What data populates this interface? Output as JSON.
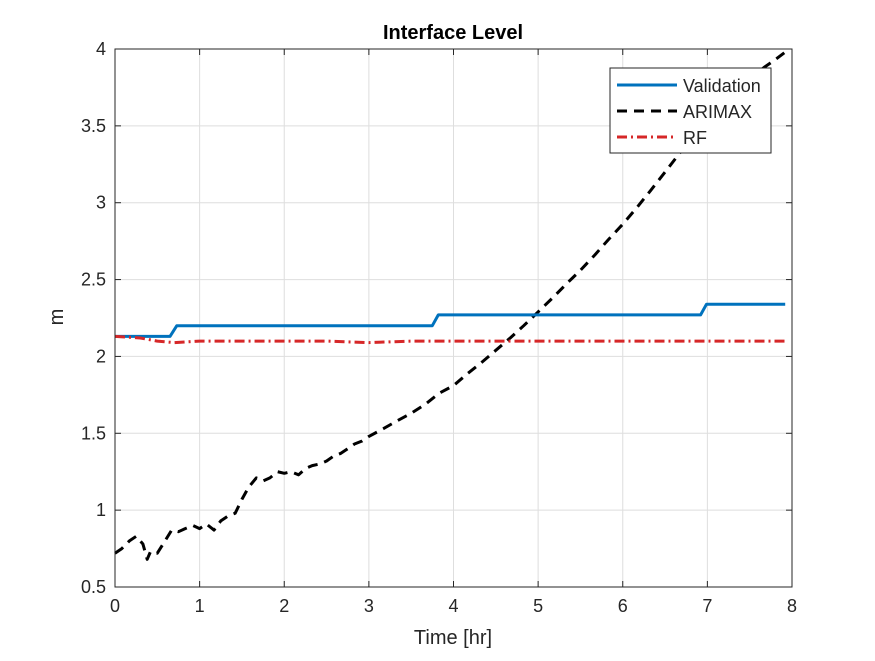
{
  "chart_data": {
    "type": "line",
    "title": "Interface Level",
    "xlabel": "Time [hr]",
    "ylabel": "m",
    "xlim": [
      0,
      8
    ],
    "ylim": [
      0.5,
      4
    ],
    "xticks": [
      0,
      1,
      2,
      3,
      4,
      5,
      6,
      7,
      8
    ],
    "xtick_labels": [
      "0",
      "1",
      "2",
      "3",
      "4",
      "5",
      "6",
      "7",
      "8"
    ],
    "yticks": [
      0.5,
      1,
      1.5,
      2,
      2.5,
      3,
      3.5,
      4
    ],
    "ytick_labels": [
      "0.5",
      "1",
      "1.5",
      "2",
      "2.5",
      "3",
      "3.5",
      "4"
    ],
    "grid": true,
    "legend_position": "top-right",
    "series": [
      {
        "name": "Validation",
        "color": "#0072BD",
        "style": "solid",
        "x": [
          0,
          0.65,
          0.73,
          3.75,
          3.82,
          6.92,
          6.99,
          7.92
        ],
        "y": [
          2.13,
          2.13,
          2.2,
          2.2,
          2.27,
          2.27,
          2.34,
          2.34
        ]
      },
      {
        "name": "ARIMAX",
        "color": "#000000",
        "style": "dashed",
        "x": [
          0,
          0.08,
          0.17,
          0.25,
          0.33,
          0.38,
          0.42,
          0.5,
          0.58,
          0.67,
          0.75,
          0.83,
          0.92,
          1.0,
          1.08,
          1.17,
          1.25,
          1.33,
          1.42,
          1.5,
          1.58,
          1.67,
          1.75,
          1.83,
          1.92,
          2.0,
          2.08,
          2.17,
          2.25,
          2.33,
          2.42,
          2.5,
          2.58,
          2.67,
          2.75,
          2.83,
          2.92,
          3.0,
          3.17,
          3.33,
          3.5,
          3.67,
          3.83,
          4.0,
          4.17,
          4.33,
          4.5,
          4.67,
          4.83,
          5.0,
          5.17,
          5.33,
          5.5,
          5.67,
          5.83,
          6.0,
          6.17,
          6.33,
          6.5,
          6.67,
          6.83,
          7.0,
          7.17,
          7.33,
          7.5,
          7.67,
          7.8,
          7.92
        ],
        "y": [
          0.72,
          0.75,
          0.8,
          0.83,
          0.78,
          0.68,
          0.73,
          0.72,
          0.79,
          0.87,
          0.86,
          0.88,
          0.9,
          0.88,
          0.91,
          0.87,
          0.93,
          0.96,
          0.98,
          1.07,
          1.15,
          1.21,
          1.19,
          1.21,
          1.25,
          1.24,
          1.25,
          1.23,
          1.27,
          1.29,
          1.3,
          1.32,
          1.35,
          1.37,
          1.4,
          1.43,
          1.45,
          1.48,
          1.53,
          1.58,
          1.63,
          1.69,
          1.76,
          1.81,
          1.89,
          1.96,
          2.04,
          2.12,
          2.2,
          2.29,
          2.38,
          2.47,
          2.56,
          2.66,
          2.76,
          2.86,
          2.97,
          3.08,
          3.2,
          3.32,
          3.44,
          3.55,
          3.65,
          3.74,
          3.81,
          3.88,
          3.93,
          3.98
        ]
      },
      {
        "name": "RF",
        "color": "#D62728",
        "style": "dashdot",
        "x": [
          0,
          0.3,
          0.5,
          0.7,
          1.0,
          1.5,
          2.0,
          2.5,
          3.0,
          3.5,
          4.0,
          4.5,
          5.0,
          5.5,
          6.0,
          6.5,
          7.0,
          7.5,
          7.92
        ],
        "y": [
          2.13,
          2.12,
          2.1,
          2.09,
          2.1,
          2.1,
          2.1,
          2.1,
          2.09,
          2.1,
          2.1,
          2.1,
          2.1,
          2.1,
          2.1,
          2.1,
          2.1,
          2.1,
          2.1
        ]
      }
    ]
  }
}
